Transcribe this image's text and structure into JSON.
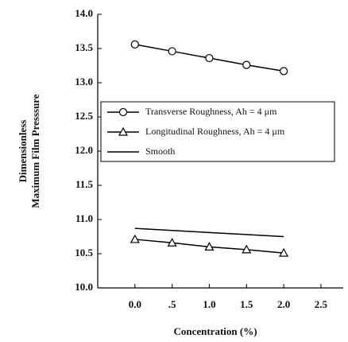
{
  "chart_data": {
    "type": "line",
    "x_label": "Concentration (%)",
    "y_label": [
      "Dimensionless",
      "Maximum Film Presssure"
    ],
    "x": [
      0,
      0.5,
      1,
      1.5,
      2
    ],
    "series": [
      {
        "name": "Transverse Roughness, Ah = 4 μm",
        "color": "#000000",
        "marker": "circle",
        "values": [
          13.56,
          13.46,
          13.36,
          13.26,
          13.17
        ]
      },
      {
        "name": "Longitudinal Roughness, Ah = 4 μm",
        "color": "#000000",
        "marker": "triangle",
        "values": [
          10.71,
          10.66,
          10.6,
          10.56,
          10.51
        ]
      },
      {
        "name": "Smooth",
        "color": "#000000",
        "marker": "none",
        "values": [
          10.87,
          10.84,
          10.81,
          10.78,
          10.75
        ]
      }
    ],
    "xlim": [
      -0.5,
      2.8
    ],
    "ylim": [
      10,
      14
    ],
    "xticks": [
      {
        "value": 0,
        "label": "0.0"
      },
      {
        "value": 0.5,
        "label": ".5"
      },
      {
        "value": 1,
        "label": "1.0"
      },
      1.5,
      {
        "value": 2,
        "label": "2.0"
      },
      2.5
    ],
    "yticks": [
      {
        "value": 10,
        "label": "10.0"
      },
      10.5,
      {
        "value": 11,
        "label": "11.0"
      },
      11.5,
      {
        "value": 12,
        "label": "12.0"
      },
      12.5,
      {
        "value": 13,
        "label": "13.0"
      },
      13.5,
      {
        "value": 14,
        "label": "14.0"
      }
    ],
    "grid": false,
    "legend": "upper-left"
  }
}
